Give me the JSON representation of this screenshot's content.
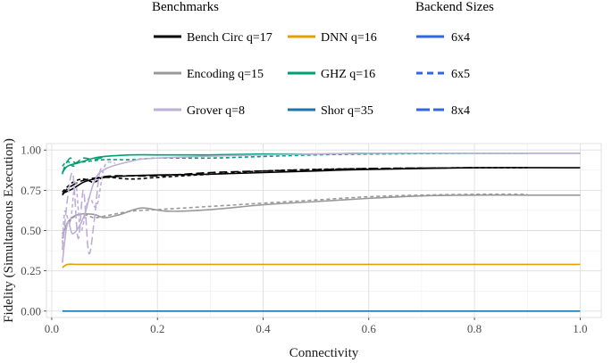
{
  "chart_data": {
    "type": "line",
    "xlabel": "Connectivity",
    "ylabel": "Fidelity (Simultaneous Execution)",
    "xlim": [
      -0.01,
      1.04
    ],
    "ylim": [
      -0.04,
      1.04
    ],
    "xticks": [
      0.0,
      0.2,
      0.4,
      0.6,
      0.8,
      1.0
    ],
    "xtick_labels": [
      "0.0",
      "0.2",
      "0.4",
      "0.6",
      "0.8",
      "1.0"
    ],
    "yticks": [
      0.0,
      0.25,
      0.5,
      0.75,
      1.0
    ],
    "ytick_labels": [
      "0.00",
      "0.25",
      "0.50",
      "0.75",
      "1.00"
    ],
    "grid": true,
    "legend_placement": "top",
    "legends": [
      {
        "title": "Benchmarks",
        "items": [
          {
            "label": "Bench Circ q=17",
            "color": "#000000"
          },
          {
            "label": "DNN q=16",
            "color": "#E69F00"
          },
          {
            "label": "Encoding q=15",
            "color": "#999999"
          },
          {
            "label": "GHZ q=16",
            "color": "#009E73"
          },
          {
            "label": "Grover q=8",
            "color": "#BDAFD8"
          },
          {
            "label": "Shor q=35",
            "color": "#1E73AE"
          }
        ]
      },
      {
        "title": "Backend Sizes",
        "items": [
          {
            "label": "6x4",
            "dash": "solid",
            "color": "#3366E6"
          },
          {
            "label": "6x5",
            "dash": "dashed",
            "color": "#3366E6"
          },
          {
            "label": "8x4",
            "dash": "longdash",
            "color": "#3366E6"
          }
        ]
      }
    ],
    "series": [
      {
        "benchmark": "Bench Circ q=17",
        "backend": "6x4",
        "color": "#000000",
        "dash": "solid",
        "x": [
          0.02,
          0.04,
          0.06,
          0.08,
          0.1,
          0.15,
          0.2,
          0.3,
          0.4,
          0.5,
          0.6,
          0.8,
          1.0
        ],
        "y": [
          0.73,
          0.76,
          0.8,
          0.82,
          0.83,
          0.84,
          0.845,
          0.85,
          0.86,
          0.87,
          0.88,
          0.89,
          0.89
        ]
      },
      {
        "benchmark": "Bench Circ q=17",
        "backend": "6x5",
        "color": "#000000",
        "dash": "dashed",
        "x": [
          0.02,
          0.04,
          0.06,
          0.08,
          0.1,
          0.15,
          0.2,
          0.3,
          0.4,
          0.5,
          0.6,
          0.8,
          0.9
        ],
        "y": [
          0.74,
          0.8,
          0.82,
          0.8,
          0.83,
          0.82,
          0.83,
          0.85,
          0.87,
          0.88,
          0.885,
          0.89,
          0.89
        ]
      },
      {
        "benchmark": "Bench Circ q=17",
        "backend": "8x4",
        "color": "#000000",
        "dash": "longdash",
        "x": [
          0.02,
          0.03,
          0.05,
          0.07,
          0.09,
          0.12,
          0.2,
          0.3,
          0.4,
          0.6,
          0.8
        ],
        "y": [
          0.72,
          0.76,
          0.8,
          0.82,
          0.83,
          0.84,
          0.84,
          0.86,
          0.87,
          0.885,
          0.89
        ]
      },
      {
        "benchmark": "DNN q=16",
        "backend": "6x4",
        "color": "#E69F00",
        "dash": "solid",
        "x": [
          0.02,
          0.03,
          0.05,
          0.1,
          0.2,
          0.4,
          0.6,
          0.8,
          1.0
        ],
        "y": [
          0.27,
          0.29,
          0.29,
          0.29,
          0.29,
          0.29,
          0.29,
          0.29,
          0.29
        ]
      },
      {
        "benchmark": "Encoding q=15",
        "backend": "6x4",
        "color": "#999999",
        "dash": "solid",
        "x": [
          0.02,
          0.03,
          0.05,
          0.08,
          0.1,
          0.13,
          0.17,
          0.22,
          0.3,
          0.4,
          0.5,
          0.6,
          0.7,
          0.8,
          0.9,
          1.0
        ],
        "y": [
          0.45,
          0.55,
          0.6,
          0.6,
          0.58,
          0.6,
          0.64,
          0.62,
          0.63,
          0.66,
          0.68,
          0.7,
          0.715,
          0.72,
          0.72,
          0.72
        ]
      },
      {
        "benchmark": "Encoding q=15",
        "backend": "6x5",
        "color": "#999999",
        "dash": "dashed",
        "x": [
          0.02,
          0.04,
          0.06,
          0.08,
          0.1,
          0.15,
          0.2,
          0.3,
          0.4,
          0.5,
          0.6,
          0.7,
          0.8,
          0.9
        ],
        "y": [
          0.48,
          0.58,
          0.6,
          0.58,
          0.59,
          0.62,
          0.63,
          0.65,
          0.67,
          0.69,
          0.71,
          0.72,
          0.725,
          0.725
        ]
      },
      {
        "benchmark": "GHZ q=16",
        "backend": "6x4",
        "color": "#009E73",
        "dash": "solid",
        "x": [
          0.02,
          0.03,
          0.05,
          0.08,
          0.1,
          0.15,
          0.2,
          0.3,
          0.4,
          0.5,
          0.6,
          0.8,
          1.0
        ],
        "y": [
          0.86,
          0.9,
          0.92,
          0.95,
          0.96,
          0.97,
          0.97,
          0.97,
          0.975,
          0.975,
          0.98,
          0.98,
          0.98
        ]
      },
      {
        "benchmark": "GHZ q=16",
        "backend": "6x5",
        "color": "#009E73",
        "dash": "dashed",
        "x": [
          0.02,
          0.03,
          0.04,
          0.05,
          0.07,
          0.1,
          0.15,
          0.2,
          0.3,
          0.4,
          0.5,
          0.6,
          0.8,
          0.9
        ],
        "y": [
          0.9,
          0.93,
          0.9,
          0.92,
          0.93,
          0.94,
          0.94,
          0.95,
          0.95,
          0.96,
          0.97,
          0.975,
          0.98,
          0.98
        ]
      },
      {
        "benchmark": "GHZ q=16",
        "backend": "8x4",
        "color": "#009E73",
        "dash": "longdash",
        "x": [
          0.02,
          0.025,
          0.035,
          0.045,
          0.06,
          0.08,
          0.1
        ],
        "y": [
          0.85,
          0.9,
          0.95,
          0.92,
          0.95,
          0.94,
          0.96
        ]
      },
      {
        "benchmark": "Grover q=8",
        "backend": "6x4",
        "color": "#BDAFD8",
        "dash": "solid",
        "x": [
          0.02,
          0.03,
          0.04,
          0.06,
          0.08,
          0.1,
          0.15,
          0.2,
          0.4,
          0.6,
          0.8,
          1.0
        ],
        "y": [
          0.3,
          0.55,
          0.48,
          0.58,
          0.8,
          0.88,
          0.93,
          0.95,
          0.97,
          0.98,
          0.98,
          0.98
        ]
      },
      {
        "benchmark": "Grover q=8",
        "backend": "6x5",
        "color": "#BDAFD8",
        "dash": "dashed",
        "x": [
          0.02,
          0.025,
          0.035,
          0.045,
          0.055,
          0.07,
          0.085,
          0.1,
          0.12
        ],
        "y": [
          0.42,
          0.62,
          0.55,
          0.8,
          0.5,
          0.7,
          0.65,
          0.9,
          0.92
        ]
      },
      {
        "benchmark": "Grover q=8",
        "backend": "8x4",
        "color": "#BDAFD8",
        "dash": "longdash",
        "x": [
          0.02,
          0.03,
          0.04,
          0.05,
          0.06,
          0.07,
          0.08,
          0.09,
          0.1
        ],
        "y": [
          0.38,
          0.7,
          0.85,
          0.45,
          0.75,
          0.36,
          0.55,
          0.85,
          0.9
        ]
      },
      {
        "benchmark": "Shor q=35",
        "backend": "6x4",
        "color": "#1E73AE",
        "dash": "solid",
        "x": [
          0.02,
          1.0
        ],
        "y": [
          0.0,
          0.0
        ]
      }
    ]
  }
}
